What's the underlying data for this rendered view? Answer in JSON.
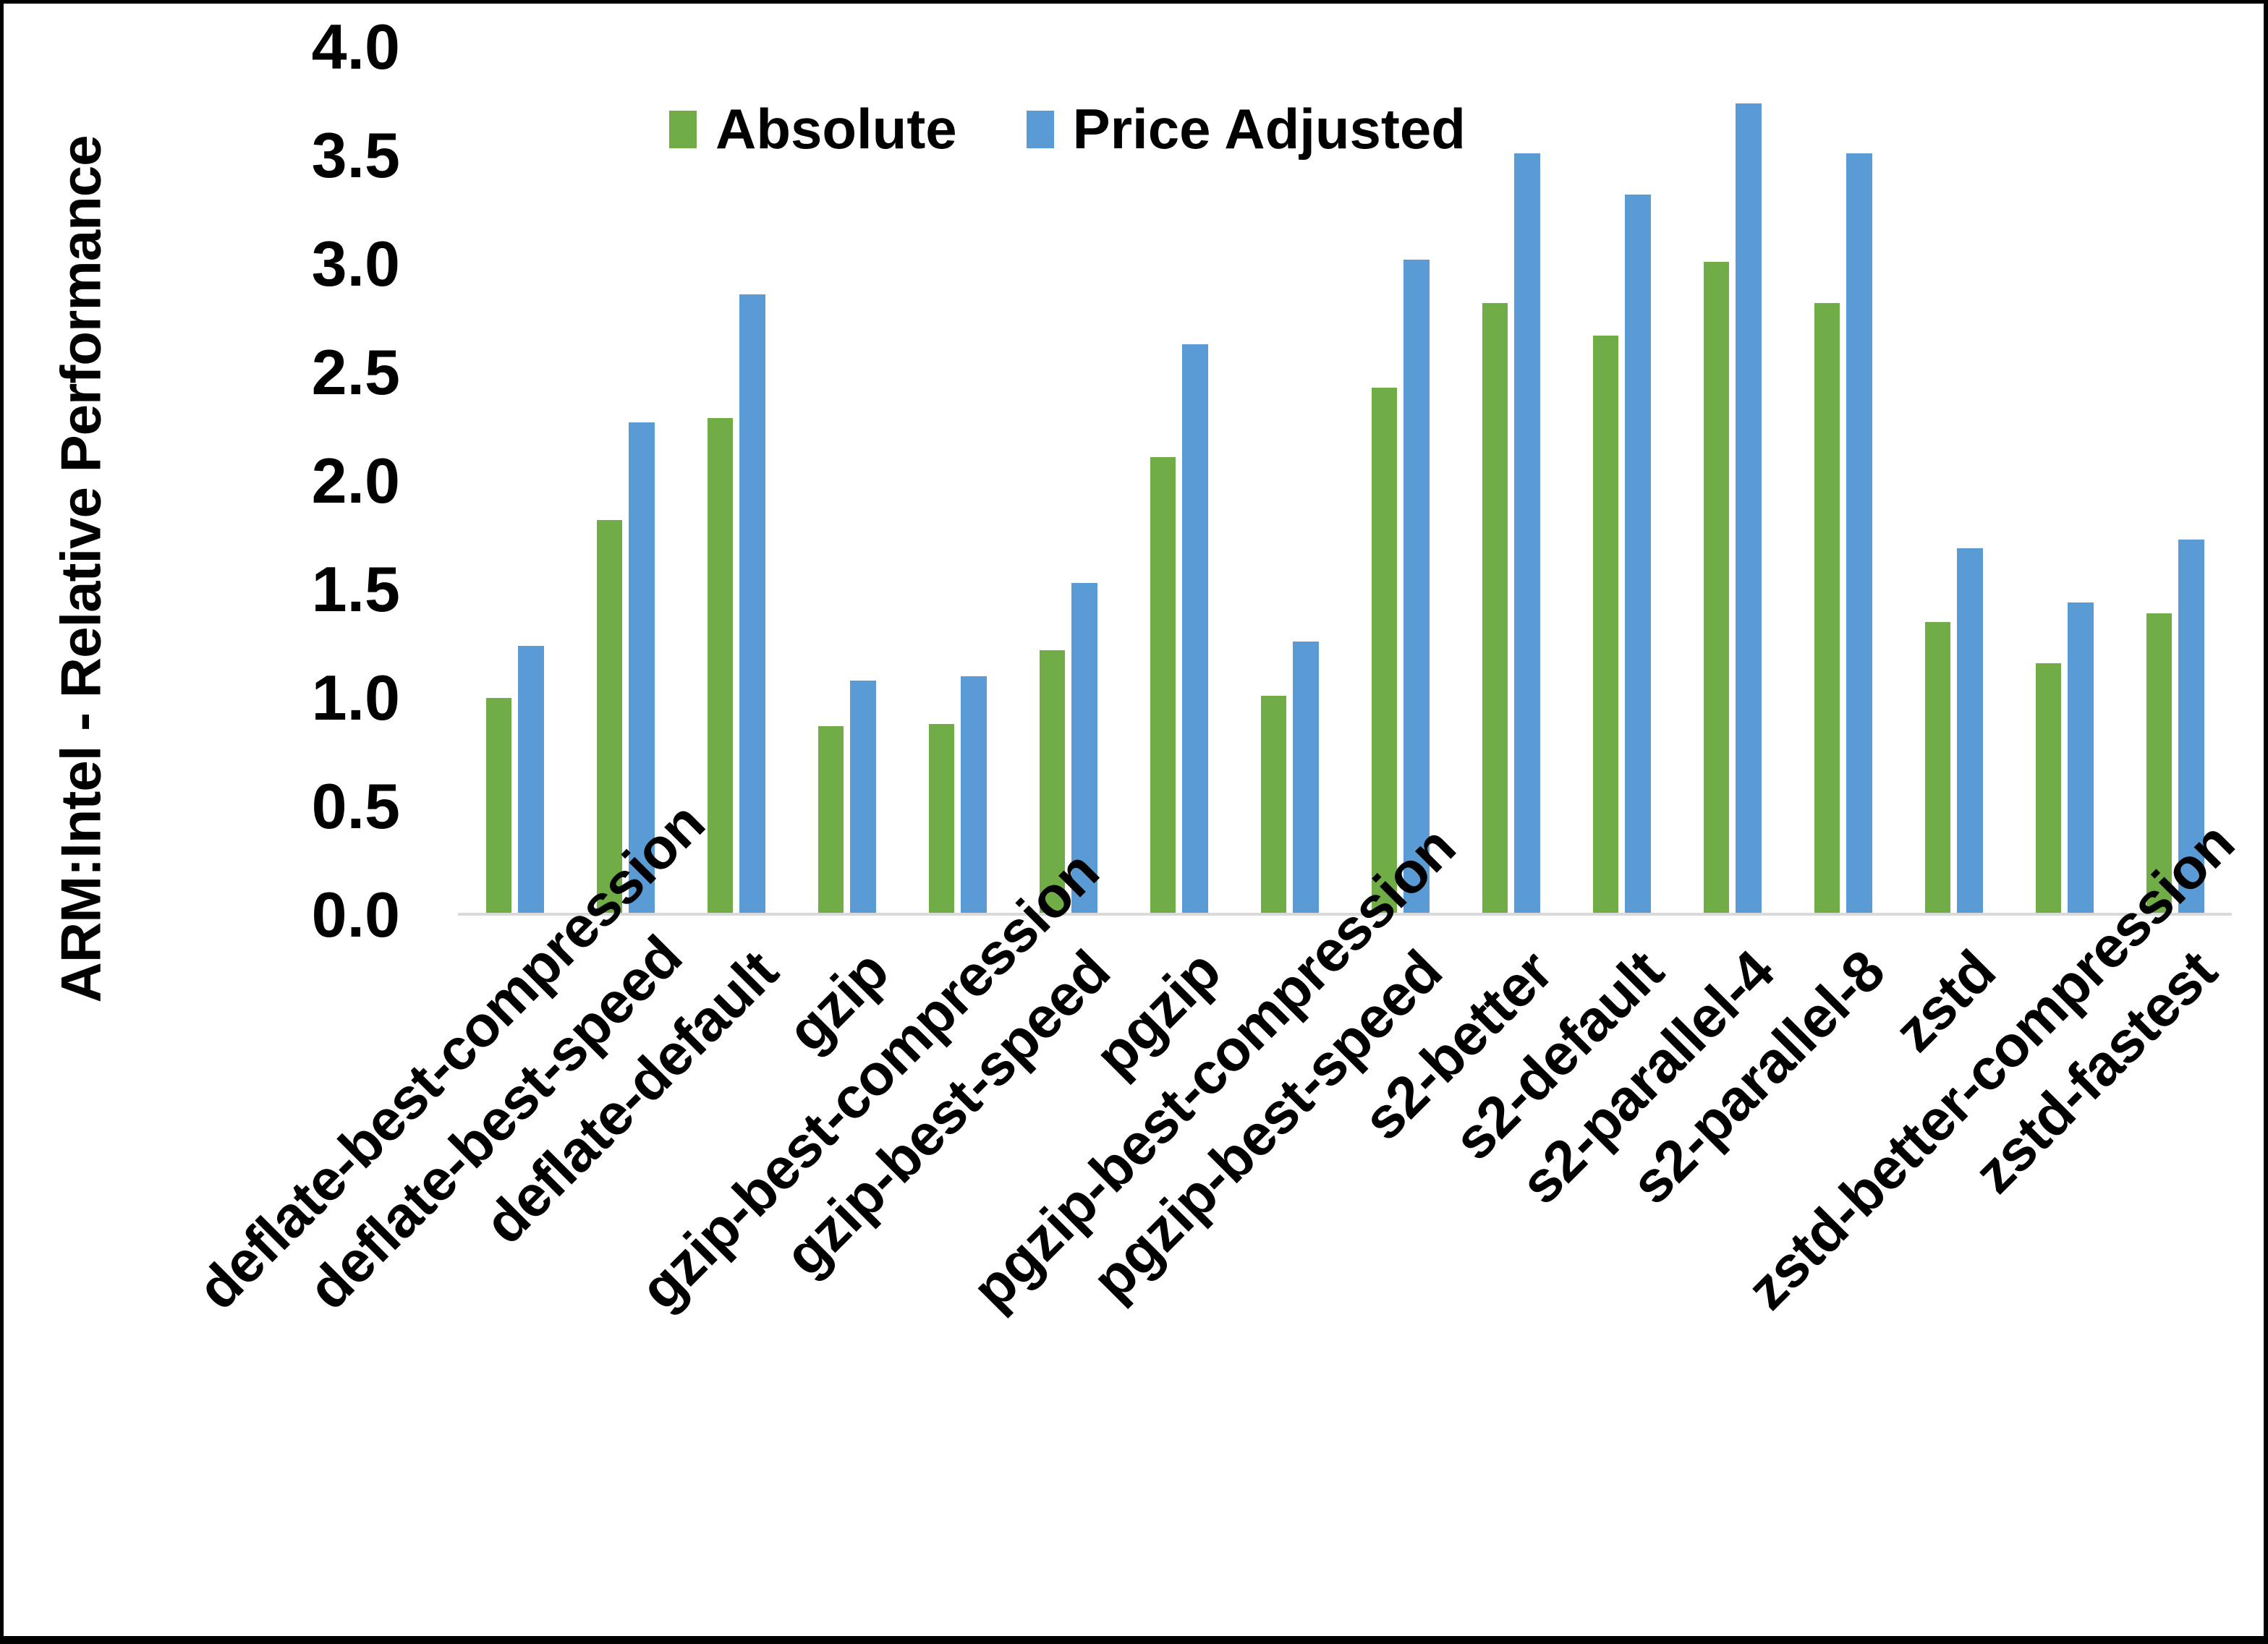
{
  "chart_data": {
    "type": "bar",
    "title": "",
    "ylabel": "ARM:Intel - Relative Performance",
    "xlabel": "",
    "ylim": [
      0.0,
      4.0
    ],
    "ytick_step": 0.5,
    "yticks": [
      "4.0",
      "3.5",
      "3.0",
      "2.5",
      "2.0",
      "1.5",
      "1.0",
      "0.5",
      "0.0"
    ],
    "grid": false,
    "legend_position": "top-center",
    "categories": [
      "deflate-best-compression",
      "deflate-best-speed",
      "deflate-default",
      "gzip",
      "gzip-best-compression",
      "gzip-best-speed",
      "pgzip",
      "pgzip-best-compression",
      "pgzip-best-speed",
      "s2-better",
      "s2-default",
      "s2-parallel-4",
      "s2-parallel-8",
      "zstd",
      "zstd-better-compression",
      "zstd-fastest"
    ],
    "series": [
      {
        "name": "Absolute",
        "color": "#70AD47",
        "values": [
          1.0,
          1.82,
          2.29,
          0.87,
          0.88,
          1.22,
          2.11,
          1.01,
          2.43,
          2.82,
          2.67,
          3.01,
          2.82,
          1.35,
          1.16,
          1.39
        ]
      },
      {
        "name": "Price Adjusted",
        "color": "#5B9BD5",
        "values": [
          1.24,
          2.27,
          2.86,
          1.08,
          1.1,
          1.53,
          2.63,
          1.26,
          3.02,
          3.51,
          3.32,
          3.74,
          3.51,
          1.69,
          1.44,
          1.73
        ]
      }
    ],
    "axis_line_color": "#D9D9D9"
  }
}
